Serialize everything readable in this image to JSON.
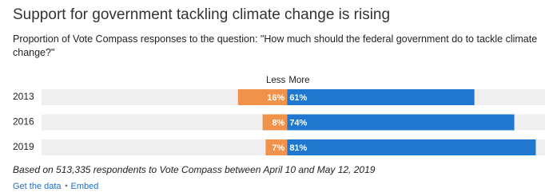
{
  "chart_data": {
    "type": "diverging-bar",
    "title": "Support for government tackling climate change is rising",
    "subtitle": "Proportion of Vote Compass responses to the question: \"How much should the federal government do to tackle climate change?\"",
    "categories": [
      "2013",
      "2016",
      "2019"
    ],
    "series": [
      {
        "name": "Less",
        "color": "#f0924a",
        "values": [
          16,
          8,
          7
        ],
        "value_labels": [
          "16%",
          "8%",
          "7%"
        ]
      },
      {
        "name": "More",
        "color": "#1f77d0",
        "values": [
          61,
          74,
          81
        ],
        "value_labels": [
          "61%",
          "74%",
          "81%"
        ]
      }
    ],
    "xlim": [
      -80,
      84
    ],
    "note": "Based on 513,335 respondents to Vote Compass between April 10 and May 12, 2019"
  },
  "links": [
    "Get the data",
    "Embed"
  ]
}
